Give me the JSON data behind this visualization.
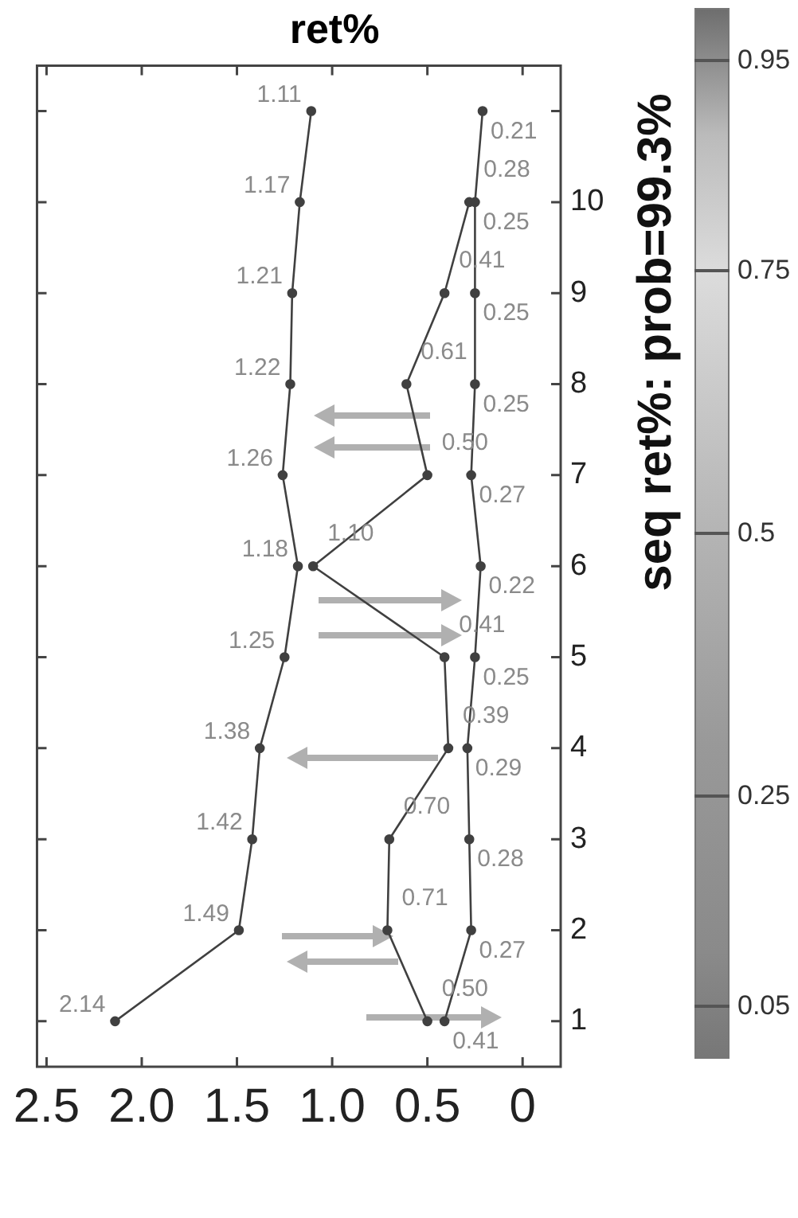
{
  "chart_data": {
    "type": "line",
    "orientation": "horizontal",
    "title": "ret%",
    "clabel": "seq ret%: prob=99.3%",
    "clim": [
      0,
      1
    ],
    "cticks": [
      0.05,
      0.25,
      0.5,
      0.75,
      0.95
    ],
    "categories": [
      null,
      "10",
      "9",
      "8",
      "7",
      "6",
      "5",
      "4",
      "3",
      "2",
      "1"
    ],
    "xlim": [
      2.55,
      -0.2
    ],
    "xticks": [
      2.5,
      {
        "value": 2,
        "label": "2.0"
      },
      1.5,
      {
        "value": 1,
        "label": "1.0"
      },
      0.5,
      0
    ],
    "marker": "circle",
    "line_style": "solid",
    "grid": false,
    "legend": false,
    "series": [
      {
        "color": "#404040",
        "values": [
          1.11,
          1.17,
          1.21,
          1.22,
          1.26,
          1.18,
          1.25,
          1.38,
          1.42,
          1.49,
          2.14
        ],
        "value_labels": [
          "1.11",
          "1.17",
          "1.21",
          "1.22",
          "1.26",
          "1.18",
          "1.25",
          "1.38",
          "1.42",
          "1.49",
          "2.14"
        ]
      },
      {
        "color": "#404040",
        "values": [
          null,
          0.28,
          0.41,
          0.61,
          0.5,
          1.1,
          0.41,
          0.39,
          0.7,
          0.71,
          0.5
        ],
        "value_labels": [
          null,
          "0.28",
          "0.41",
          "0.61",
          "0.50",
          "1.10",
          "0.41",
          "0.39",
          "0.70",
          "0.71",
          "0.50"
        ]
      },
      {
        "color": "#404040",
        "values": [
          0.21,
          0.25,
          0.25,
          0.25,
          0.27,
          0.22,
          0.25,
          0.29,
          0.28,
          0.27,
          0.41
        ],
        "value_labels": [
          "0.21",
          "0.25",
          "0.25",
          "0.25",
          "0.27",
          "0.22",
          "0.25",
          "0.29",
          "0.28",
          "0.27",
          "0.41"
        ]
      }
    ]
  }
}
